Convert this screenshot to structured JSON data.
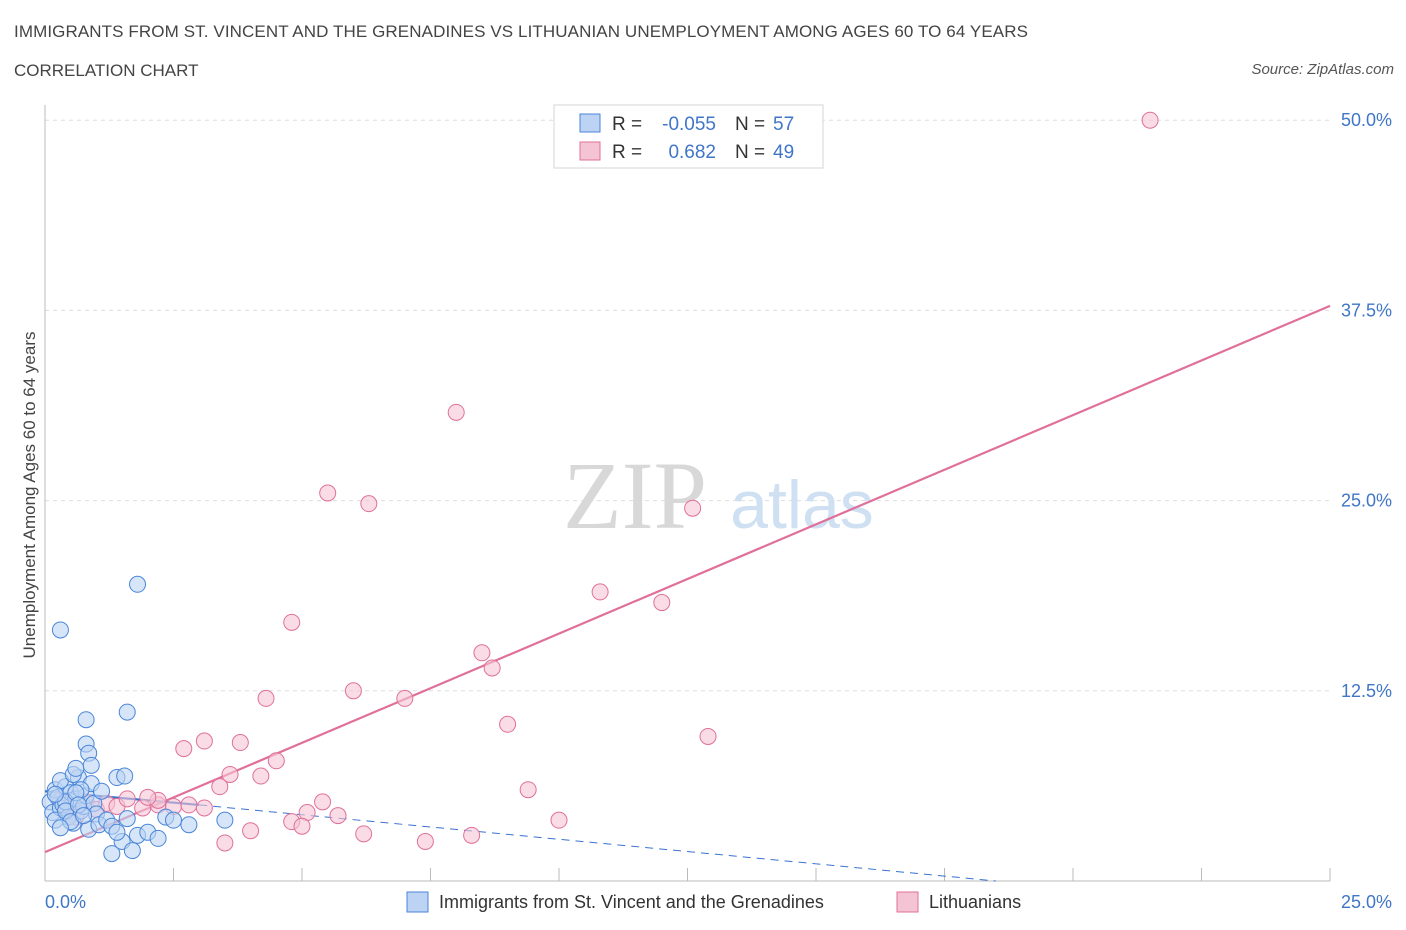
{
  "title": "IMMIGRANTS FROM ST. VINCENT AND THE GRENADINES VS LITHUANIAN UNEMPLOYMENT AMONG AGES 60 TO 64 YEARS",
  "subtitle": "CORRELATION CHART",
  "source": "Source: ZipAtlas.com",
  "watermark": {
    "zip": "ZIP",
    "atlas": "atlas"
  },
  "colors": {
    "blue": "#4a86d8",
    "blue_fill": "#bcd3f3",
    "blue_line": "#3a72d0",
    "pink": "#e0709a",
    "pink_fill": "#f5c4d4",
    "pink_line": "#e0709a",
    "axis_text": "#3f76c8",
    "grid": "#dddddd"
  },
  "legend": {
    "rows": [
      {
        "r_label": "R =",
        "r_value": "-0.055",
        "n_label": "N =",
        "n_value": "57"
      },
      {
        "r_label": "R =",
        "r_value": "0.682",
        "n_label": "N =",
        "n_value": "49"
      }
    ]
  },
  "bottom_legend": [
    "Immigrants from St. Vincent and the Grenadines",
    "Lithuanians"
  ],
  "chart_data": {
    "type": "scatter",
    "title": "IMMIGRANTS FROM ST. VINCENT AND THE GRENADINES VS LITHUANIAN UNEMPLOYMENT AMONG AGES 60 TO 64 YEARS",
    "xlabel": "",
    "ylabel": "Unemployment Among Ages 60 to 64 years",
    "xlim": [
      0,
      25
    ],
    "ylim": [
      0,
      51
    ],
    "x_tick_labels": [
      "0.0%",
      "25.0%"
    ],
    "y_ticks": [
      12.5,
      25.0,
      37.5,
      50.0
    ],
    "y_tick_labels": [
      "12.5%",
      "25.0%",
      "37.5%",
      "50.0%"
    ],
    "series": [
      {
        "name": "Immigrants from St. Vincent and the Grenadines",
        "R": -0.055,
        "N": 57,
        "trend_solid": [
          [
            0.0,
            5.9
          ],
          [
            3.0,
            5.0
          ]
        ],
        "trend_dashed": [
          [
            3.0,
            5.0
          ],
          [
            18.5,
            0.0
          ]
        ],
        "points": [
          [
            0.1,
            5.2
          ],
          [
            0.15,
            4.5
          ],
          [
            0.2,
            6.0
          ],
          [
            0.25,
            5.5
          ],
          [
            0.3,
            4.8
          ],
          [
            0.35,
            5.0
          ],
          [
            0.4,
            6.2
          ],
          [
            0.45,
            4.2
          ],
          [
            0.5,
            5.8
          ],
          [
            0.55,
            3.8
          ],
          [
            0.6,
            5.4
          ],
          [
            0.65,
            6.8
          ],
          [
            0.7,
            4.6
          ],
          [
            0.75,
            4.9
          ],
          [
            0.8,
            5.6
          ],
          [
            0.85,
            3.4
          ],
          [
            0.9,
            6.4
          ],
          [
            0.95,
            5.1
          ],
          [
            1.0,
            4.4
          ],
          [
            1.05,
            3.7
          ],
          [
            1.1,
            5.9
          ],
          [
            0.2,
            4.0
          ],
          [
            0.3,
            6.6
          ],
          [
            0.4,
            5.2
          ],
          [
            0.55,
            7.0
          ],
          [
            0.6,
            7.4
          ],
          [
            0.7,
            6.0
          ],
          [
            0.8,
            9.0
          ],
          [
            0.85,
            8.4
          ],
          [
            0.6,
            5.8
          ],
          [
            0.4,
            4.6
          ],
          [
            0.5,
            3.9
          ],
          [
            0.3,
            3.5
          ],
          [
            0.2,
            5.7
          ],
          [
            0.65,
            5.0
          ],
          [
            0.75,
            4.3
          ],
          [
            0.9,
            7.6
          ],
          [
            1.2,
            4.0
          ],
          [
            1.3,
            3.6
          ],
          [
            1.4,
            6.8
          ],
          [
            1.55,
            6.9
          ],
          [
            1.6,
            4.1
          ],
          [
            1.8,
            3.0
          ],
          [
            2.0,
            3.2
          ],
          [
            2.2,
            2.8
          ],
          [
            2.35,
            4.2
          ],
          [
            1.3,
            1.8
          ],
          [
            1.5,
            2.6
          ],
          [
            1.4,
            3.2
          ],
          [
            1.7,
            2.0
          ],
          [
            2.5,
            4.0
          ],
          [
            2.8,
            3.7
          ],
          [
            3.5,
            4.0
          ],
          [
            0.3,
            16.5
          ],
          [
            0.8,
            10.6
          ],
          [
            1.6,
            11.1
          ],
          [
            1.8,
            19.5
          ]
        ]
      },
      {
        "name": "Lithuanians",
        "R": 0.682,
        "N": 49,
        "trend": [
          [
            0.0,
            1.9
          ],
          [
            25.0,
            37.8
          ]
        ],
        "points": [
          [
            0.3,
            5.3
          ],
          [
            0.5,
            4.6
          ],
          [
            0.6,
            4.2
          ],
          [
            0.8,
            5.2
          ],
          [
            1.0,
            4.7
          ],
          [
            1.2,
            5.1
          ],
          [
            1.4,
            4.9
          ],
          [
            1.6,
            5.4
          ],
          [
            1.9,
            4.8
          ],
          [
            2.2,
            5.0
          ],
          [
            2.5,
            4.9
          ],
          [
            2.8,
            5.0
          ],
          [
            3.1,
            4.8
          ],
          [
            3.4,
            6.2
          ],
          [
            3.6,
            7.0
          ],
          [
            3.8,
            9.1
          ],
          [
            4.0,
            3.3
          ],
          [
            4.2,
            6.9
          ],
          [
            4.5,
            7.9
          ],
          [
            4.8,
            3.9
          ],
          [
            5.1,
            4.5
          ],
          [
            5.4,
            5.2
          ],
          [
            5.7,
            4.3
          ],
          [
            6.2,
            3.1
          ],
          [
            6.0,
            12.5
          ],
          [
            4.3,
            12.0
          ],
          [
            4.8,
            17.0
          ],
          [
            5.5,
            25.5
          ],
          [
            6.3,
            24.8
          ],
          [
            8.0,
            30.8
          ],
          [
            8.5,
            15.0
          ],
          [
            8.7,
            14.0
          ],
          [
            9.0,
            10.3
          ],
          [
            9.4,
            6.0
          ],
          [
            7.0,
            12.0
          ],
          [
            7.4,
            2.6
          ],
          [
            8.3,
            3.0
          ],
          [
            3.5,
            2.5
          ],
          [
            3.1,
            9.2
          ],
          [
            5.0,
            3.6
          ],
          [
            2.7,
            8.7
          ],
          [
            2.2,
            5.3
          ],
          [
            2.0,
            5.5
          ],
          [
            12.0,
            18.3
          ],
          [
            12.6,
            24.5
          ],
          [
            10.8,
            19.0
          ],
          [
            12.9,
            9.5
          ],
          [
            21.5,
            50.0
          ],
          [
            10.0,
            4.0
          ]
        ]
      }
    ]
  }
}
